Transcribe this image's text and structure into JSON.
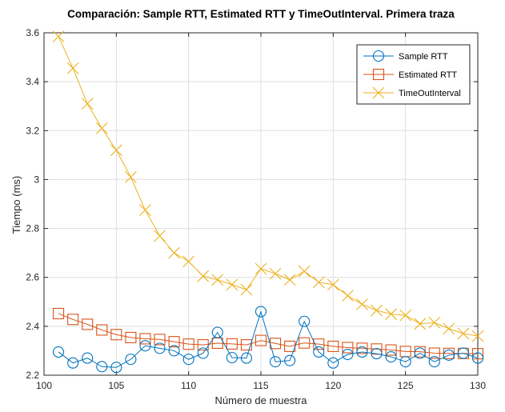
{
  "chart_data": {
    "type": "line",
    "title": "Comparación: Sample RTT, Estimated RTT y TimeOutInterval. Primera traza",
    "xlabel": "Número de muestra",
    "ylabel": "Tiempo (ms)",
    "xlim": [
      100,
      130
    ],
    "ylim": [
      2.2,
      3.6
    ],
    "xticks": [
      "100",
      "105",
      "110",
      "115",
      "120",
      "125",
      "130"
    ],
    "yticks": [
      "2.2",
      "2.4",
      "2.6",
      "2.8",
      "3",
      "3.2",
      "3.4",
      "3.6"
    ],
    "grid": true,
    "legend_position": "top-right",
    "x": [
      101,
      102,
      103,
      104,
      105,
      106,
      107,
      108,
      109,
      110,
      111,
      112,
      113,
      114,
      115,
      116,
      117,
      118,
      119,
      120,
      121,
      122,
      123,
      124,
      125,
      126,
      127,
      128,
      129,
      130
    ],
    "series": [
      {
        "name": "Sample RTT",
        "marker": "circle",
        "color": "#0072BD",
        "values": [
          2.295,
          2.25,
          2.27,
          2.235,
          2.232,
          2.265,
          2.32,
          2.31,
          2.3,
          2.265,
          2.29,
          2.375,
          2.272,
          2.27,
          2.46,
          2.255,
          2.26,
          2.42,
          2.295,
          2.25,
          2.285,
          2.295,
          2.288,
          2.275,
          2.255,
          2.29,
          2.255,
          2.282,
          2.29,
          2.27
        ]
      },
      {
        "name": "Estimated RTT",
        "marker": "square",
        "color": "#D95319",
        "values": [
          2.452,
          2.428,
          2.408,
          2.385,
          2.366,
          2.354,
          2.349,
          2.346,
          2.337,
          2.327,
          2.324,
          2.331,
          2.328,
          2.324,
          2.342,
          2.33,
          2.318,
          2.332,
          2.327,
          2.318,
          2.313,
          2.31,
          2.307,
          2.303,
          2.297,
          2.296,
          2.29,
          2.289,
          2.289,
          2.288
        ]
      },
      {
        "name": "TimeOutInterval",
        "marker": "x",
        "color": "#EDB120",
        "values": [
          3.585,
          3.455,
          3.31,
          3.21,
          3.12,
          3.01,
          2.875,
          2.77,
          2.7,
          2.665,
          2.605,
          2.59,
          2.57,
          2.55,
          2.635,
          2.615,
          2.59,
          2.625,
          2.58,
          2.57,
          2.525,
          2.49,
          2.465,
          2.45,
          2.445,
          2.41,
          2.415,
          2.39,
          2.37,
          2.36
        ]
      }
    ]
  }
}
